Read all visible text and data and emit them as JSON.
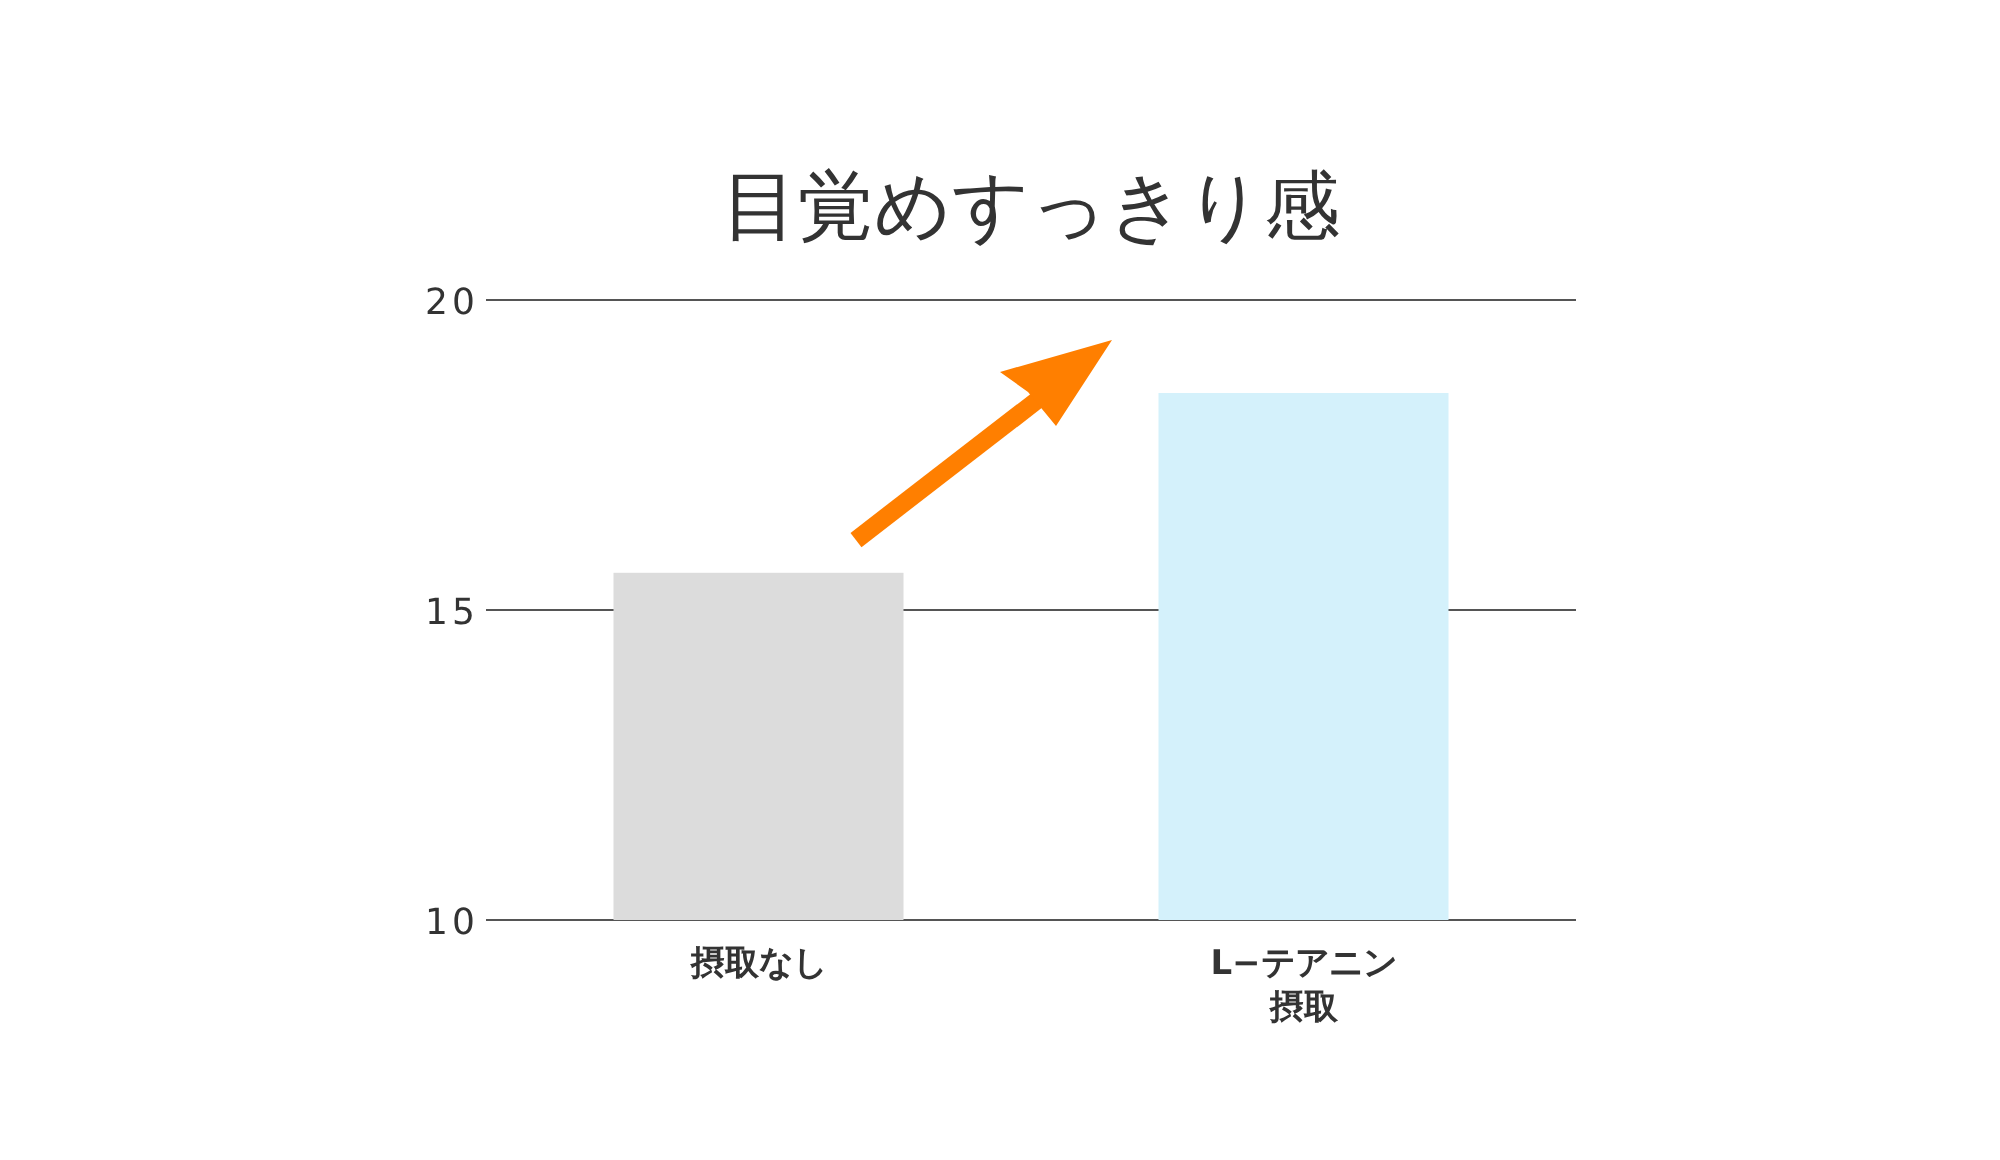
{
  "chart_data": {
    "type": "bar",
    "title": "目覚めすっきり感",
    "categories": [
      "摂取なし",
      "L−テアニン摂取"
    ],
    "values": [
      15.6,
      18.5
    ],
    "colors": [
      "#dcdcdc",
      "#d4f1fb"
    ],
    "ylim": [
      10,
      20
    ],
    "yticks": [
      10,
      15,
      20
    ],
    "grid": "y"
  }
}
